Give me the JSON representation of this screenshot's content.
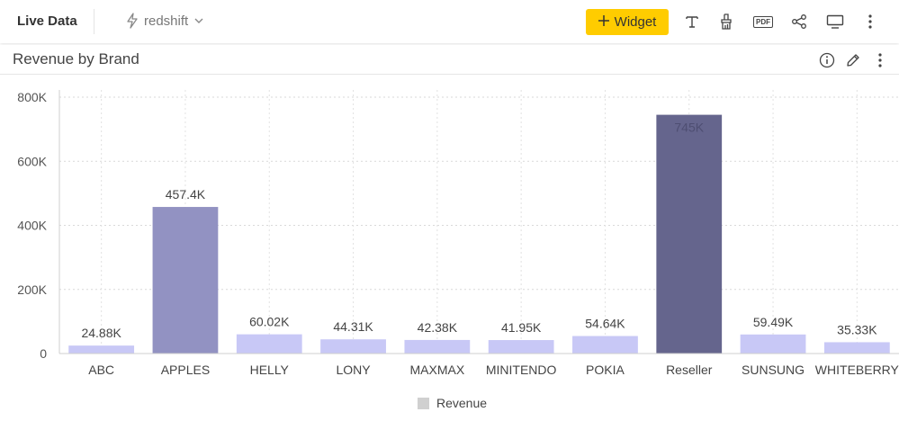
{
  "header": {
    "title": "Live Data",
    "source_label": "redshift",
    "widget_label": "Widget"
  },
  "panel": {
    "title": "Revenue by Brand"
  },
  "icons": {
    "source": "lightning-icon",
    "dropdown": "chevron-down-icon",
    "add": "plus-icon",
    "text": "text-icon",
    "clean": "brush-icon",
    "pdf": "pdf-icon",
    "pdf_text": "PDF",
    "share": "share-icon",
    "present": "monitor-icon",
    "more": "more-vertical-icon",
    "info": "info-icon",
    "edit": "pencil-icon"
  },
  "colors": {
    "accent": "#ffcc00",
    "bar_light": "#c8c8f6",
    "bar_mid": "#9292c2",
    "bar_dark": "#65658d"
  },
  "chart_data": {
    "type": "bar",
    "categories": [
      "ABC",
      "APPLES",
      "HELLY",
      "LONY",
      "MAXMAX",
      "MINITENDO",
      "POKIA",
      "Reseller",
      "SUNSUNG",
      "WHITEBERRY"
    ],
    "values": [
      24880,
      457400,
      60020,
      44310,
      42380,
      41950,
      54640,
      745000,
      59490,
      35330
    ],
    "data_labels": [
      "24.88K",
      "457.4K",
      "60.02K",
      "44.31K",
      "42.38K",
      "41.95K",
      "54.64K",
      "745K",
      "59.49K",
      "35.33K"
    ],
    "bar_colors": [
      "#c8c8f6",
      "#9292c2",
      "#c8c8f6",
      "#c8c8f6",
      "#c8c8f6",
      "#c8c8f6",
      "#c8c8f6",
      "#65658d",
      "#c8c8f6",
      "#c8c8f6"
    ],
    "y_ticks": [
      0,
      200000,
      400000,
      600000,
      800000
    ],
    "y_tick_labels": [
      "0",
      "200K",
      "400K",
      "600K",
      "800K"
    ],
    "ylim": [
      0,
      800000
    ],
    "grid": true,
    "legend": {
      "placement": "bottom",
      "items": [
        {
          "name": "Revenue",
          "color": "#d0d0d0"
        }
      ]
    }
  }
}
